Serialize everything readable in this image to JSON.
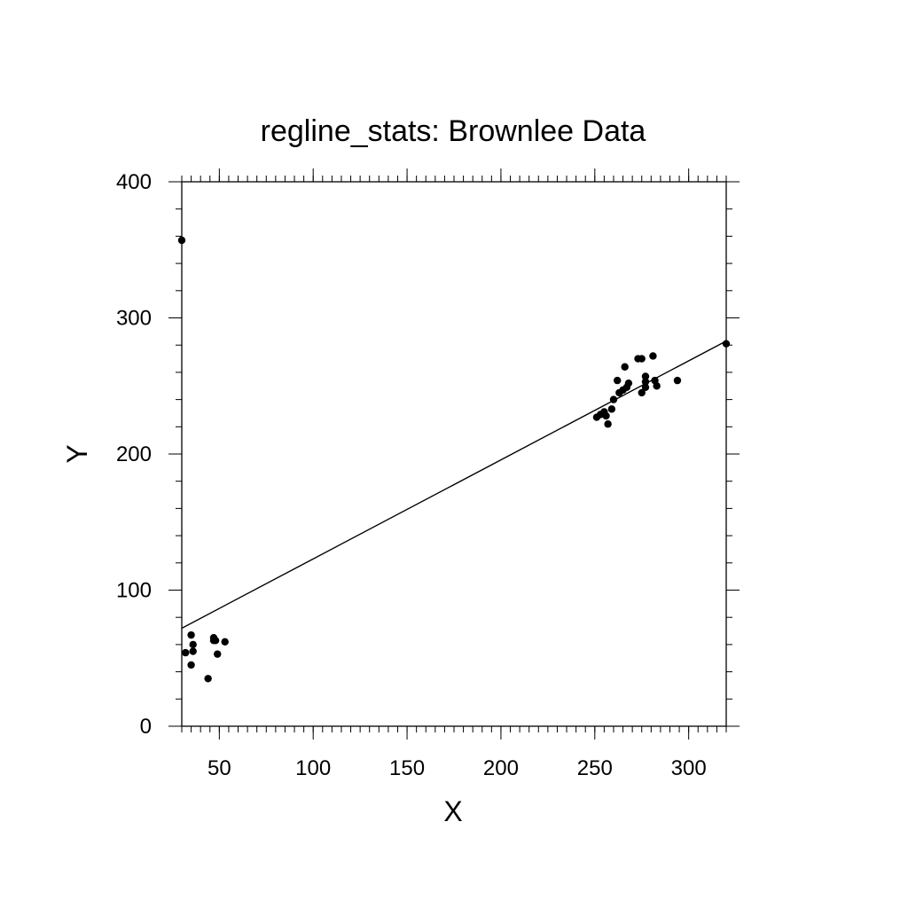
{
  "chart_data": {
    "type": "scatter",
    "title": "regline_stats: Brownlee Data",
    "xlabel": "X",
    "ylabel": "Y",
    "xlim": [
      30,
      320
    ],
    "ylim": [
      0,
      400
    ],
    "x_ticks": [
      {
        "value": 50,
        "label": "50"
      },
      {
        "value": 100,
        "label": "100"
      },
      {
        "value": 150,
        "label": "150"
      },
      {
        "value": 200,
        "label": "200"
      },
      {
        "value": 250,
        "label": "250"
      },
      {
        "value": 300,
        "label": "300"
      }
    ],
    "y_ticks": [
      {
        "value": 0,
        "label": "0"
      },
      {
        "value": 100,
        "label": "100"
      },
      {
        "value": 200,
        "label": "200"
      },
      {
        "value": 300,
        "label": "300"
      },
      {
        "value": 400,
        "label": "400"
      }
    ],
    "points": [
      {
        "x": 30,
        "y": 357
      },
      {
        "x": 32,
        "y": 54
      },
      {
        "x": 35,
        "y": 67
      },
      {
        "x": 35,
        "y": 45
      },
      {
        "x": 36,
        "y": 60
      },
      {
        "x": 36,
        "y": 55
      },
      {
        "x": 44,
        "y": 35
      },
      {
        "x": 47,
        "y": 63
      },
      {
        "x": 47,
        "y": 65
      },
      {
        "x": 48,
        "y": 63
      },
      {
        "x": 49,
        "y": 53
      },
      {
        "x": 53,
        "y": 62
      },
      {
        "x": 251,
        "y": 227
      },
      {
        "x": 253,
        "y": 229
      },
      {
        "x": 255,
        "y": 231
      },
      {
        "x": 256,
        "y": 228
      },
      {
        "x": 257,
        "y": 222
      },
      {
        "x": 259,
        "y": 233
      },
      {
        "x": 260,
        "y": 240
      },
      {
        "x": 262,
        "y": 254
      },
      {
        "x": 263,
        "y": 245
      },
      {
        "x": 265,
        "y": 247
      },
      {
        "x": 266,
        "y": 264
      },
      {
        "x": 267,
        "y": 249
      },
      {
        "x": 268,
        "y": 252
      },
      {
        "x": 273,
        "y": 270
      },
      {
        "x": 275,
        "y": 270
      },
      {
        "x": 275,
        "y": 245
      },
      {
        "x": 277,
        "y": 257
      },
      {
        "x": 277,
        "y": 253
      },
      {
        "x": 277,
        "y": 249
      },
      {
        "x": 281,
        "y": 272
      },
      {
        "x": 282,
        "y": 254
      },
      {
        "x": 283,
        "y": 250
      },
      {
        "x": 294,
        "y": 254
      },
      {
        "x": 320,
        "y": 281
      }
    ],
    "regression_line": {
      "x": [
        30,
        320
      ],
      "y": [
        72,
        283
      ]
    },
    "grid": false,
    "legend": "none"
  },
  "colors": {
    "marker": "#000000",
    "line": "#000000",
    "frame": "#000000"
  }
}
